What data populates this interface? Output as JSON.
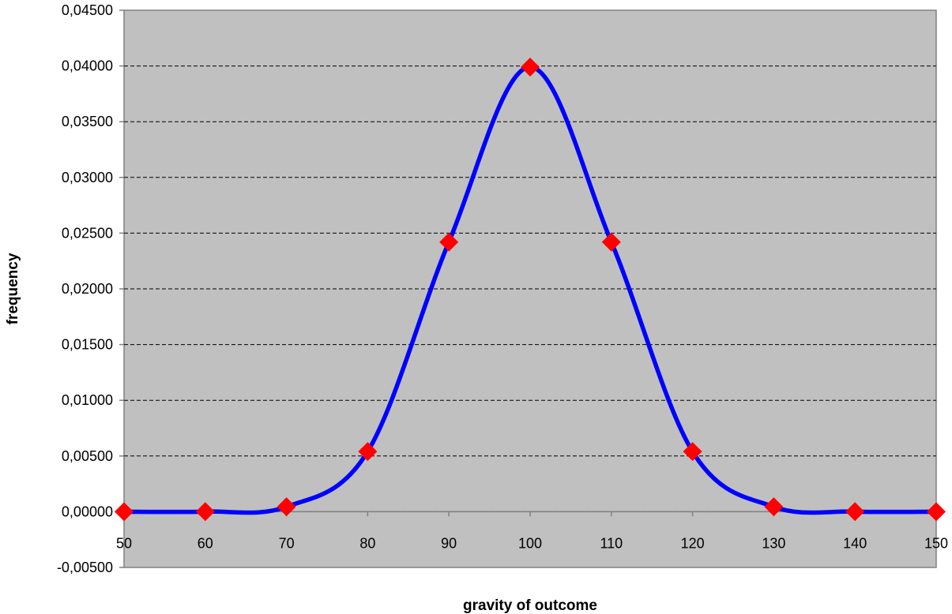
{
  "chart_data": {
    "type": "line",
    "title": "",
    "xlabel": "gravity of outcome",
    "ylabel": "frequency",
    "xlim": [
      50,
      150
    ],
    "ylim": [
      -0.005,
      0.045
    ],
    "x_ticks": [
      50,
      60,
      70,
      80,
      90,
      100,
      110,
      120,
      130,
      140,
      150
    ],
    "x_tick_labels": [
      "50",
      "60",
      "70",
      "80",
      "90",
      "100",
      "110",
      "120",
      "130",
      "140",
      "150"
    ],
    "y_ticks": [
      -0.005,
      0,
      0.005,
      0.01,
      0.015,
      0.02,
      0.025,
      0.03,
      0.035,
      0.04,
      0.045
    ],
    "y_tick_labels": [
      "-0,00500",
      "0,00000",
      "0,00500",
      "0,01000",
      "0,01500",
      "0,02000",
      "0,02500",
      "0,03000",
      "0,03500",
      "0,04000",
      "0,04500"
    ],
    "grid": true,
    "legend": "none",
    "smoothed": true,
    "series": [
      {
        "x": [
          50,
          60,
          70,
          80,
          90,
          100,
          110,
          120,
          130,
          140,
          150
        ],
        "values": [
          1.5e-06,
          1.34e-05,
          0.000443,
          0.0054,
          0.0242,
          0.0399,
          0.0242,
          0.0054,
          0.000443,
          1.34e-05,
          1.5e-06
        ],
        "line_color": "#0000ff",
        "marker": "diamond",
        "marker_color": "#ff0000"
      }
    ],
    "colors": {
      "plot_background": "#c0c0c0",
      "page_background": "#ffffff",
      "gridline": "#000000",
      "axis": "#808080"
    }
  }
}
